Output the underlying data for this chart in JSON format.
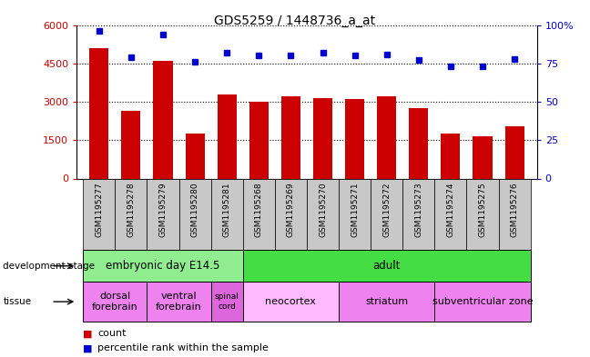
{
  "title": "GDS5259 / 1448736_a_at",
  "samples": [
    "GSM1195277",
    "GSM1195278",
    "GSM1195279",
    "GSM1195280",
    "GSM1195281",
    "GSM1195268",
    "GSM1195269",
    "GSM1195270",
    "GSM1195271",
    "GSM1195272",
    "GSM1195273",
    "GSM1195274",
    "GSM1195275",
    "GSM1195276"
  ],
  "counts": [
    5100,
    2650,
    4600,
    1750,
    3300,
    3000,
    3200,
    3150,
    3100,
    3200,
    2750,
    1750,
    1650,
    2050
  ],
  "percentiles": [
    96,
    79,
    94,
    76,
    82,
    80,
    80,
    82,
    80,
    81,
    77,
    73,
    73,
    78
  ],
  "ylim_left": [
    0,
    6000
  ],
  "ylim_right": [
    0,
    100
  ],
  "yticks_left": [
    0,
    1500,
    3000,
    4500,
    6000
  ],
  "yticks_right": [
    0,
    25,
    50,
    75,
    100
  ],
  "bar_color": "#cc0000",
  "dot_color": "#0000cc",
  "background_color": "#ffffff",
  "plot_bg": "#ffffff",
  "dev_stage_groups": [
    {
      "label": "embryonic day E14.5",
      "start": 0,
      "end": 4,
      "color": "#90ee90"
    },
    {
      "label": "adult",
      "start": 5,
      "end": 13,
      "color": "#44dd44"
    }
  ],
  "tissue_groups": [
    {
      "label": "dorsal\nforebrain",
      "start": 0,
      "end": 1,
      "color": "#ee82ee"
    },
    {
      "label": "ventral\nforebrain",
      "start": 2,
      "end": 3,
      "color": "#ee82ee"
    },
    {
      "label": "spinal\ncord",
      "start": 4,
      "end": 4,
      "color": "#dd66dd"
    },
    {
      "label": "neocortex",
      "start": 5,
      "end": 7,
      "color": "#ffbbff"
    },
    {
      "label": "striatum",
      "start": 8,
      "end": 10,
      "color": "#ee82ee"
    },
    {
      "label": "subventricular zone",
      "start": 11,
      "end": 13,
      "color": "#ee82ee"
    }
  ],
  "gsm_box_color": "#c8c8c8",
  "label_arrow_color": "#555555"
}
